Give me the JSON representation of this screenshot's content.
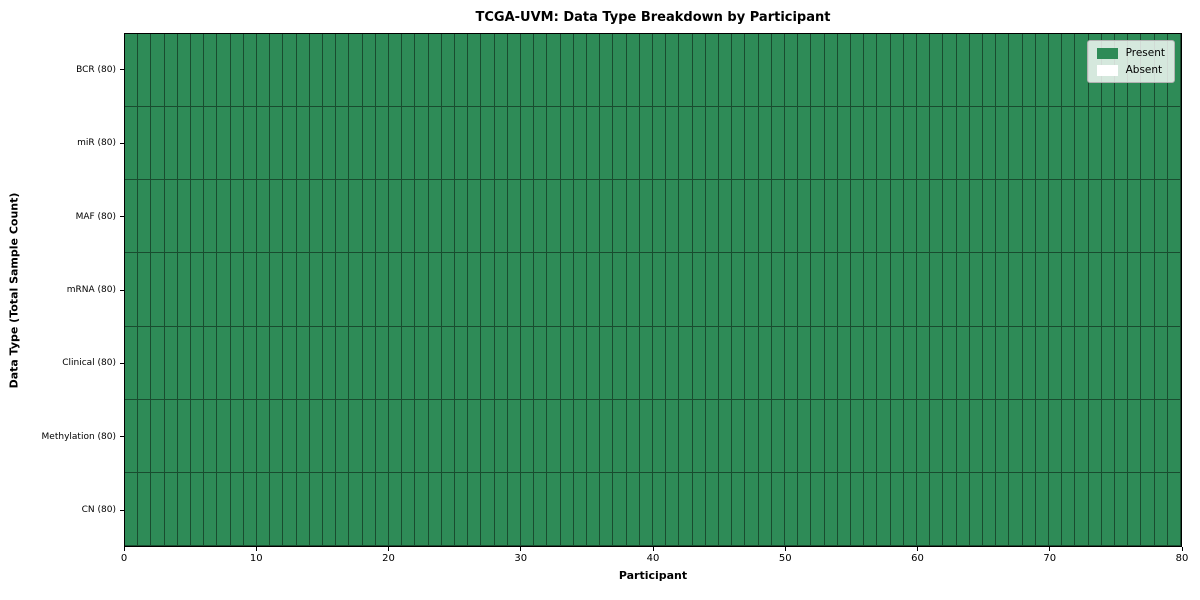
{
  "title": "TCGA-UVM: Data Type Breakdown by Participant",
  "axes": {
    "x_label": "Participant",
    "y_label": "Data Type (Total Sample Count)"
  },
  "legend": {
    "items": [
      {
        "label": "Present",
        "color": "#2e8b57"
      },
      {
        "label": "Absent",
        "color": "#ffffff"
      }
    ]
  },
  "chart_data": {
    "type": "heatmap",
    "title": "TCGA-UVM: Data Type Breakdown by Participant",
    "xlabel": "Participant",
    "ylabel": "Data Type (Total Sample Count)",
    "x_range": [
      0,
      80
    ],
    "x_ticks": [
      0,
      10,
      20,
      30,
      40,
      50,
      60,
      70,
      80
    ],
    "n_participants": 80,
    "rows": [
      {
        "label": "BCR (80)",
        "present_count": 80,
        "absent_count": 0
      },
      {
        "label": "miR (80)",
        "present_count": 80,
        "absent_count": 0
      },
      {
        "label": "MAF (80)",
        "present_count": 80,
        "absent_count": 0
      },
      {
        "label": "mRNA (80)",
        "present_count": 80,
        "absent_count": 0
      },
      {
        "label": "Clinical (80)",
        "present_count": 80,
        "absent_count": 0
      },
      {
        "label": "Methylation (80)",
        "present_count": 80,
        "absent_count": 0
      },
      {
        "label": "CN (80)",
        "present_count": 80,
        "absent_count": 0
      }
    ],
    "colors": {
      "present": "#2e8b57",
      "absent": "#ffffff",
      "cell_edge": "rgba(0,0,0,0.45)"
    },
    "legend_entries": [
      "Present",
      "Absent"
    ],
    "legend_position": "upper right",
    "grid": "cell borders on"
  }
}
